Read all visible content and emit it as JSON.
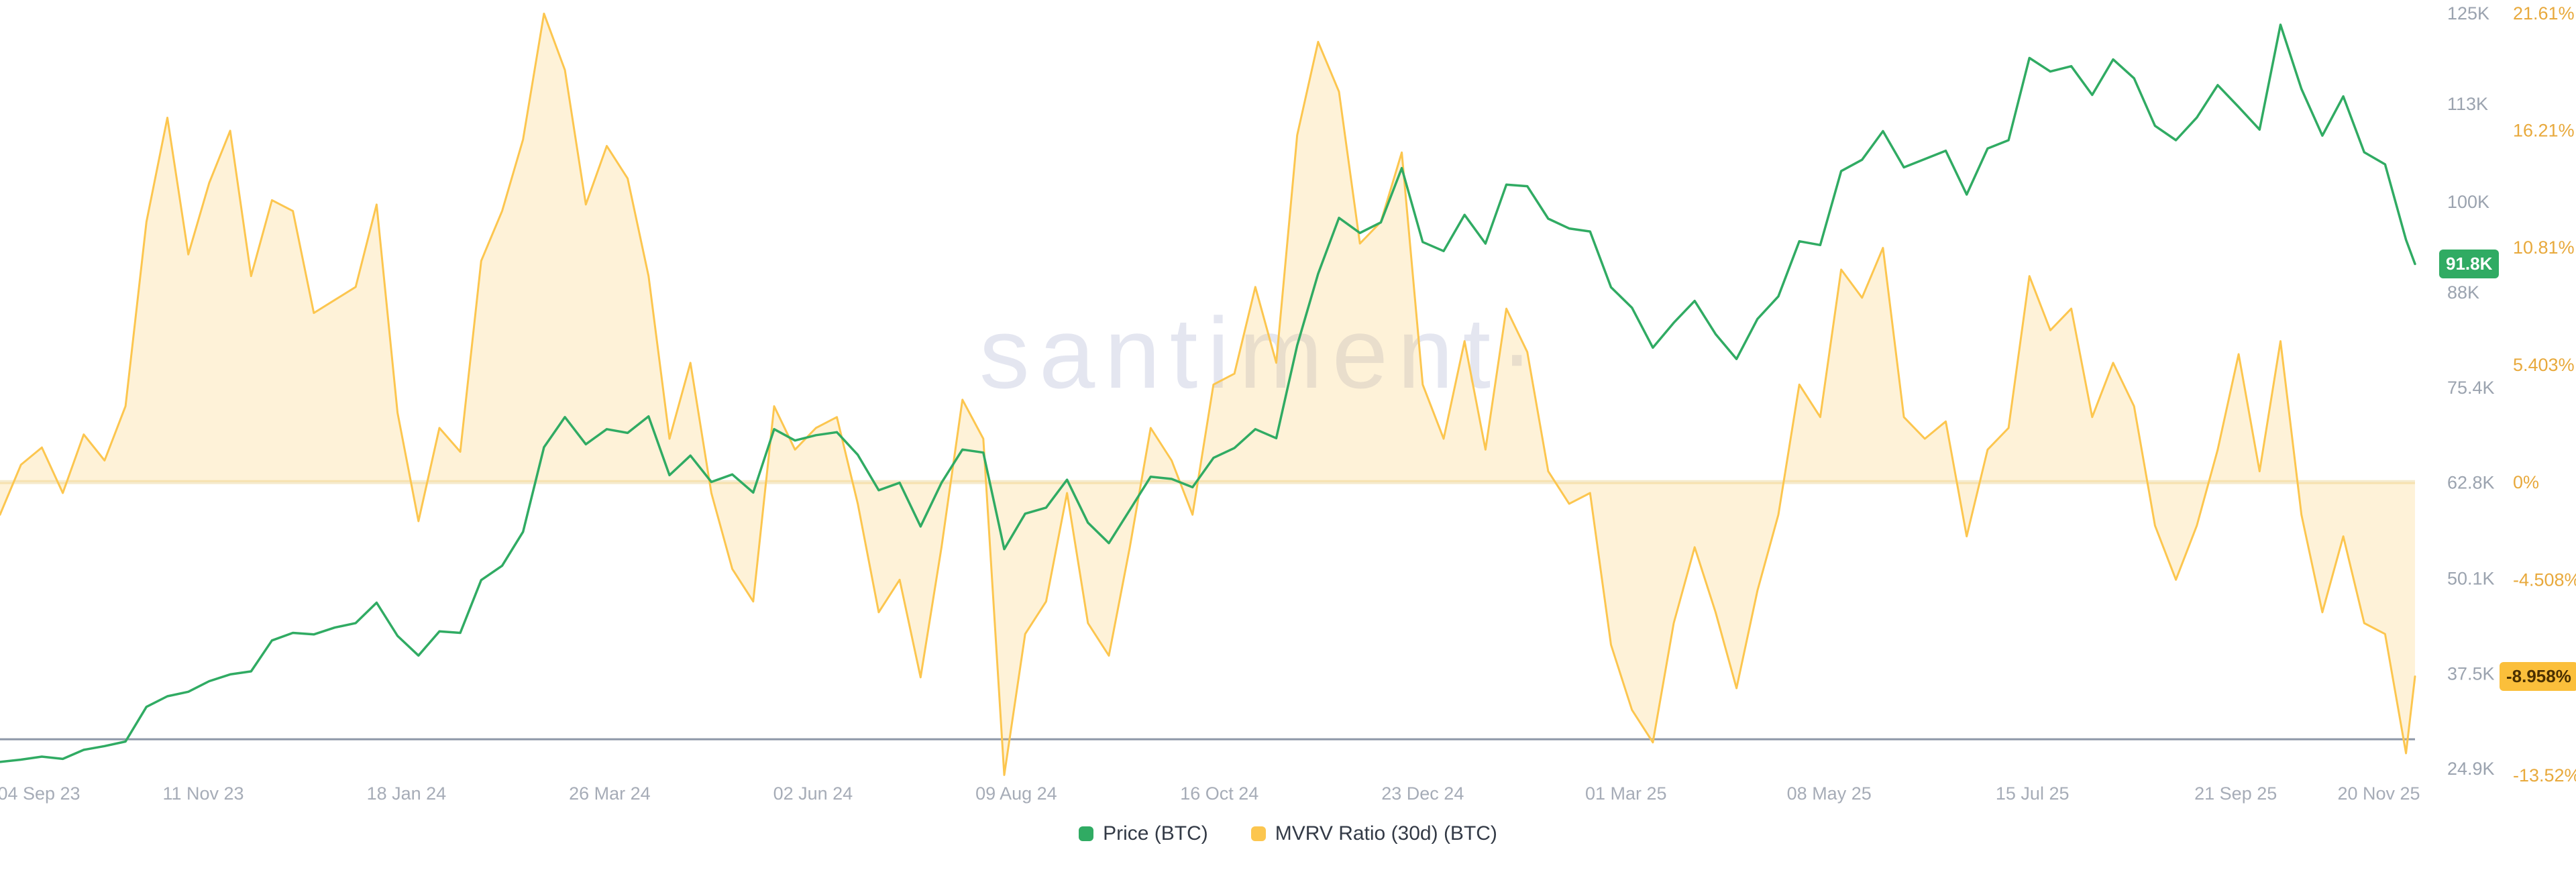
{
  "watermark": {
    "text": "santiment·"
  },
  "legend": [
    {
      "label": "Price (BTC)",
      "color": "#30ab63"
    },
    {
      "label": "MVRV Ratio (30d) (BTC)",
      "color": "#fcc64f"
    }
  ],
  "badges": {
    "price": {
      "label": "91.8K",
      "value": 91.8,
      "bg": "#30ab63",
      "fg": "#ffffff"
    },
    "mvrv": {
      "label": "-8.958%",
      "value": -8.958,
      "bg": "#fbbf3b",
      "fg": "#4a3000"
    }
  },
  "axes": {
    "price_tick_labels": [
      "125K",
      "113K",
      "100K",
      "88K",
      "75.4K",
      "62.8K",
      "50.1K",
      "37.5K",
      "24.9K"
    ],
    "percent_tick_labels": [
      "21.61%",
      "16.21%",
      "10.81%",
      "5.403%",
      "0%",
      "-4.508%",
      "-8.958%",
      "-13.52%"
    ],
    "x_tick_labels": [
      "04 Sep 23",
      "11 Nov 23",
      "18 Jan 24",
      "26 Mar 24",
      "02 Jun 24",
      "09 Aug 24",
      "16 Oct 24",
      "23 Dec 24",
      "01 Mar 25",
      "08 May 25",
      "15 Jul 25",
      "21 Sep 25",
      "20 Nov 25"
    ]
  },
  "chart_data": {
    "type": "line",
    "title": "",
    "legend_position": "bottom",
    "x_start": "2023-09-04",
    "x_end": "2025-11-20",
    "interval_days": 7,
    "total_days": 808,
    "x_ticks": [
      {
        "label": "04 Sep 23",
        "day": 0
      },
      {
        "label": "11 Nov 23",
        "day": 68
      },
      {
        "label": "18 Jan 24",
        "day": 136
      },
      {
        "label": "26 Mar 24",
        "day": 204
      },
      {
        "label": "02 Jun 24",
        "day": 272
      },
      {
        "label": "09 Aug 24",
        "day": 340
      },
      {
        "label": "16 Oct 24",
        "day": 408
      },
      {
        "label": "23 Dec 24",
        "day": 476
      },
      {
        "label": "01 Mar 25",
        "day": 544
      },
      {
        "label": "08 May 25",
        "day": 612
      },
      {
        "label": "15 Jul 25",
        "day": 680
      },
      {
        "label": "21 Sep 25",
        "day": 748
      },
      {
        "label": "20 Nov 25",
        "day": 808
      }
    ],
    "price_axis": {
      "min": 24.9,
      "max": 125,
      "ticks": [
        {
          "v": 125,
          "label": "125K"
        },
        {
          "v": 113,
          "label": "113K"
        },
        {
          "v": 100,
          "label": "100K"
        },
        {
          "v": 88,
          "label": "88K"
        },
        {
          "v": 75.4,
          "label": "75.4K"
        },
        {
          "v": 62.8,
          "label": "62.8K"
        },
        {
          "v": 50.1,
          "label": "50.1K"
        },
        {
          "v": 37.5,
          "label": "37.5K"
        },
        {
          "v": 24.9,
          "label": "24.9K"
        }
      ]
    },
    "percent_axis": {
      "min": -13.52,
      "max": 21.61,
      "ticks": [
        {
          "v": 21.61,
          "label": "21.61%"
        },
        {
          "v": 16.21,
          "label": "16.21%"
        },
        {
          "v": 10.81,
          "label": "10.81%"
        },
        {
          "v": 5.403,
          "label": "5.403%"
        },
        {
          "v": 0,
          "label": "0%"
        },
        {
          "v": -4.508,
          "label": "-4.508%"
        },
        {
          "v": -8.958,
          "label": "-8.958%"
        },
        {
          "v": -13.52,
          "label": "-13.52%"
        }
      ]
    },
    "annotations": {
      "zero_line_percent": 0,
      "support_line_price": 28.8
    },
    "series": [
      {
        "name": "Price (BTC)",
        "unit": "K USD",
        "axis": "price",
        "color": "#30ab63",
        "current": 91.8,
        "values": [
          25.8,
          26.1,
          26.5,
          26.2,
          27.4,
          27.9,
          28.5,
          33.1,
          34.5,
          35.1,
          36.5,
          37.4,
          37.8,
          41.9,
          42.9,
          42.7,
          43.6,
          44.2,
          46.9,
          42.5,
          39.9,
          43.1,
          42.9,
          49.9,
          51.8,
          56.3,
          67.5,
          71.5,
          67.9,
          69.9,
          69.4,
          71.6,
          63.8,
          66.4,
          62.9,
          63.9,
          61.5,
          69.9,
          68.4,
          69.1,
          69.5,
          66.5,
          61.8,
          62.8,
          57.0,
          62.8,
          67.2,
          66.8,
          54.0,
          58.7,
          59.5,
          63.2,
          57.5,
          54.8,
          59.2,
          63.6,
          63.3,
          62.2,
          66.1,
          67.4,
          69.9,
          68.7,
          81.0,
          90.5,
          97.9,
          95.9,
          97.3,
          104.5,
          94.7,
          93.5,
          98.3,
          94.5,
          102.3,
          102.1,
          97.8,
          96.5,
          96.1,
          88.7,
          86.0,
          80.7,
          84.0,
          86.9,
          82.5,
          79.2,
          84.5,
          87.5,
          94.8,
          94.3,
          104.1,
          105.6,
          109.4,
          104.6,
          105.7,
          106.8,
          101.0,
          107.1,
          108.2,
          119.1,
          117.3,
          118.0,
          114.2,
          118.9,
          116.4,
          110.1,
          108.2,
          111.2,
          115.5,
          112.6,
          109.6,
          123.5,
          115.0,
          108.8,
          114.0,
          106.6,
          105.0,
          95.0,
          91.8
        ]
      },
      {
        "name": "MVRV Ratio (30d) (BTC)",
        "unit": "%",
        "axis": "percent",
        "color": "#fcc64f",
        "fill": true,
        "current": -8.958,
        "values": [
          -1.5,
          0.8,
          1.6,
          -0.5,
          2.2,
          1.0,
          3.5,
          12.0,
          16.8,
          10.5,
          13.8,
          16.2,
          9.5,
          13.0,
          12.5,
          7.8,
          8.4,
          9.0,
          12.8,
          3.2,
          -1.8,
          2.5,
          1.4,
          10.2,
          12.5,
          15.8,
          21.6,
          19.0,
          12.8,
          15.5,
          14.0,
          9.5,
          2.0,
          5.5,
          -0.5,
          -4.0,
          -5.5,
          3.5,
          1.5,
          2.5,
          3.0,
          -1.0,
          -6.0,
          -4.5,
          -9.0,
          -3.0,
          3.8,
          2.0,
          -13.5,
          -7.0,
          -5.5,
          -0.5,
          -6.5,
          -8.0,
          -3.0,
          2.5,
          1.0,
          -1.5,
          4.5,
          5.0,
          9.0,
          5.5,
          16.0,
          20.3,
          18.0,
          11.0,
          12.0,
          15.2,
          4.5,
          2.0,
          6.5,
          1.5,
          8.0,
          6.0,
          0.5,
          -1.0,
          -0.5,
          -7.5,
          -10.5,
          -12.0,
          -6.5,
          -3.0,
          -6.0,
          -9.5,
          -5.0,
          -1.5,
          4.5,
          3.0,
          9.8,
          8.5,
          10.8,
          3.0,
          2.0,
          2.8,
          -2.5,
          1.5,
          2.5,
          9.5,
          7.0,
          8.0,
          3.0,
          5.5,
          3.5,
          -2.0,
          -4.5,
          -2.0,
          1.5,
          5.9,
          0.5,
          6.5,
          -1.5,
          -6.0,
          -2.5,
          -6.5,
          -7.0,
          -12.5,
          -8.958
        ]
      }
    ]
  }
}
